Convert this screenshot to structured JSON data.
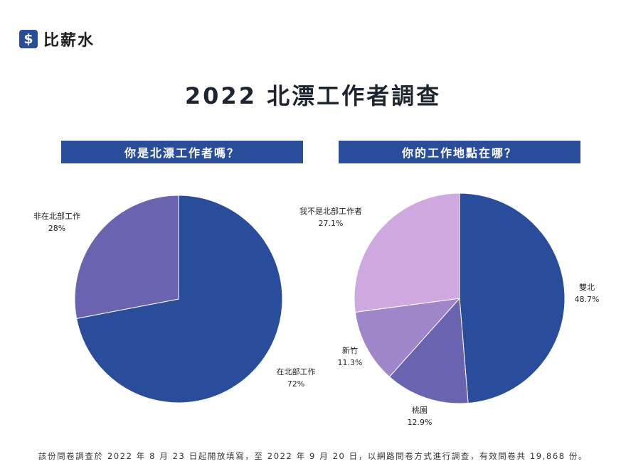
{
  "brand": {
    "icon": "dollar-icon",
    "glyph": "$",
    "name": "比薪水"
  },
  "title": "2022 北漂工作者調查",
  "chart_data": [
    {
      "type": "pie",
      "title": "你是北漂工作者嗎？",
      "start": "top",
      "direction": "clockwise",
      "slices": [
        {
          "label": "在北部工作",
          "value": 72,
          "display": "72%",
          "color": "#2a4d9b"
        },
        {
          "label": "非在北部工作",
          "value": 28,
          "display": "28%",
          "color": "#6a64b0"
        }
      ]
    },
    {
      "type": "pie",
      "title": "你的工作地點在哪？",
      "start": "top",
      "direction": "clockwise",
      "slices": [
        {
          "label": "雙北",
          "value": 48.7,
          "display": "48.7%",
          "color": "#2a4d9b"
        },
        {
          "label": "桃園",
          "value": 12.9,
          "display": "12.9%",
          "color": "#6a64b0"
        },
        {
          "label": "新竹",
          "value": 11.3,
          "display": "11.3%",
          "color": "#9f86ca"
        },
        {
          "label": "我不是北部工作者",
          "value": 27.1,
          "display": "27.1%",
          "color": "#cfa8e0"
        }
      ]
    }
  ],
  "footer": "該份問卷調查於 2022 年 8 月 23 日起開放填寫，至 2022 年 9 月 20 日，以網路問卷方式進行調查，有效問卷共 19,868 份。"
}
